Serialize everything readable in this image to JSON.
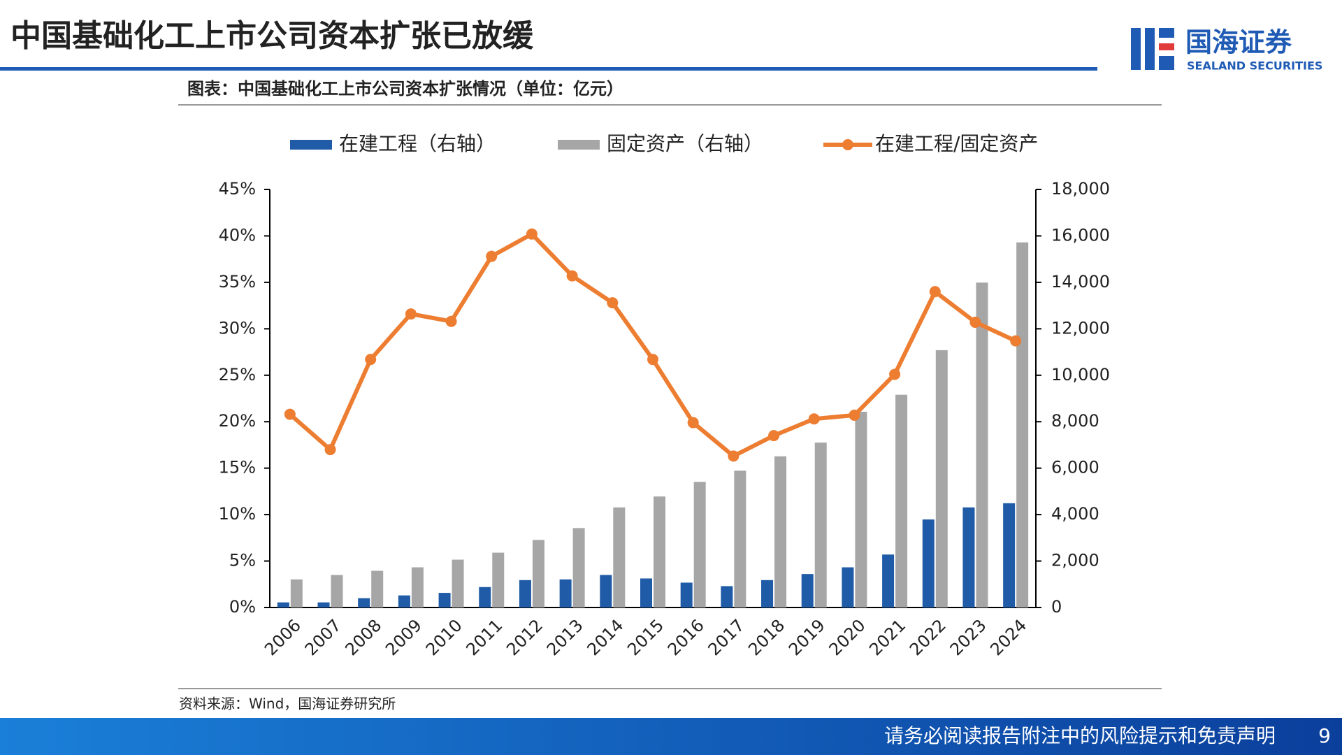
{
  "header": {
    "title": "中国基础化工上市公司资本扩张已放缓",
    "logo_name": "国海证券",
    "logo_en": "SEALAND SECURITIES"
  },
  "chart_data": {
    "type": "bar",
    "title": "图表：中国基础化工上市公司资本扩张情况（单位：亿元）",
    "categories": [
      "2006",
      "2007",
      "2008",
      "2009",
      "2010",
      "2011",
      "2012",
      "2013",
      "2014",
      "2015",
      "2016",
      "2017",
      "2018",
      "2019",
      "2020",
      "2021",
      "2022",
      "2023",
      "2024"
    ],
    "series": [
      {
        "name": "在建工程（右轴）",
        "type": "bar",
        "axis": "y2",
        "color": "#1f5ba6",
        "values": [
          220,
          220,
          400,
          520,
          630,
          880,
          1180,
          1210,
          1400,
          1250,
          1070,
          920,
          1180,
          1440,
          1730,
          2280,
          3790,
          4310,
          4490
        ]
      },
      {
        "name": "固定资产（右轴）",
        "type": "bar",
        "axis": "y2",
        "color": "#a6a6a6",
        "values": [
          1210,
          1400,
          1580,
          1730,
          2060,
          2360,
          2910,
          3420,
          4310,
          4780,
          5410,
          5890,
          6510,
          7100,
          8430,
          9160,
          11080,
          13990,
          15720
        ]
      },
      {
        "name": "在建工程/固定资产",
        "type": "line",
        "color": "#ed7d31",
        "values": [
          20.8,
          17.0,
          26.7,
          31.6,
          30.8,
          37.8,
          40.2,
          35.7,
          32.8,
          26.7,
          19.9,
          16.3,
          18.5,
          20.3,
          20.7,
          25.1,
          34.0,
          30.7,
          28.7
        ]
      }
    ],
    "ylim": [
      0,
      45
    ],
    "yticks": [
      {
        "value": 0,
        "label": "0%"
      },
      {
        "value": 5,
        "label": "5%"
      },
      {
        "value": 10,
        "label": "10%"
      },
      {
        "value": 15,
        "label": "15%"
      },
      {
        "value": 20,
        "label": "20%"
      },
      {
        "value": 25,
        "label": "25%"
      },
      {
        "value": 30,
        "label": "30%"
      },
      {
        "value": 35,
        "label": "35%"
      },
      {
        "value": 40,
        "label": "40%"
      },
      {
        "value": 45,
        "label": "45%"
      }
    ],
    "y2lim": [
      0,
      18000
    ],
    "y2ticks": [
      0,
      {
        "value": 2000,
        "label": "2,000"
      },
      {
        "value": 4000,
        "label": "4,000"
      },
      {
        "value": 6000,
        "label": "6,000"
      },
      {
        "value": 8000,
        "label": "8,000"
      },
      {
        "value": 10000,
        "label": "10,000"
      },
      {
        "value": 12000,
        "label": "12,000"
      },
      {
        "value": 14000,
        "label": "14,000"
      },
      {
        "value": 16000,
        "label": "16,000"
      },
      {
        "value": 18000,
        "label": "18,000"
      }
    ],
    "grid": false,
    "legend": "top",
    "source": "资料来源：Wind，国海证券研究所"
  },
  "footer": {
    "disclaimer": "请务必阅读报告附注中的风险提示和免责声明",
    "page": 9
  }
}
